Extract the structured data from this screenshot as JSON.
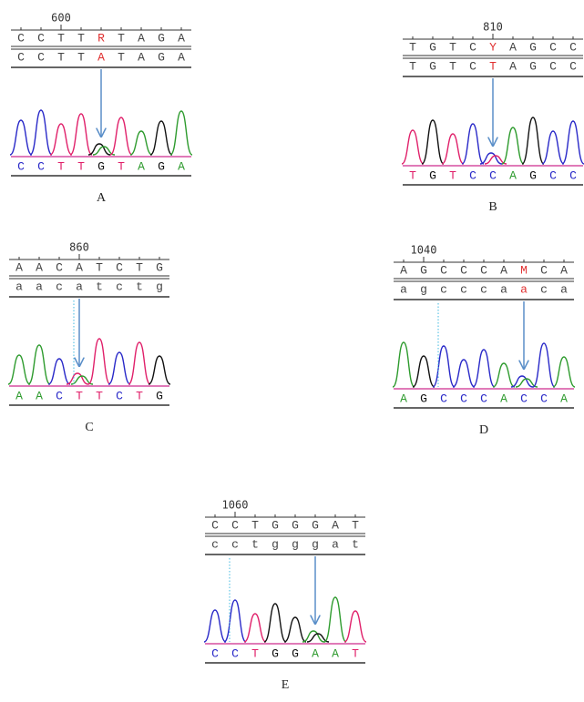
{
  "panels": [
    {
      "label": "A",
      "position": "600",
      "reference": [
        "C",
        "C",
        "T",
        "T",
        "R",
        "T",
        "A",
        "G",
        "A"
      ],
      "sample": [
        "C",
        "C",
        "T",
        "T",
        "A",
        "T",
        "A",
        "G",
        "A"
      ],
      "called": [
        "C",
        "C",
        "T",
        "T",
        "G",
        "T",
        "A",
        "G",
        "A"
      ],
      "mutation_index": 4
    },
    {
      "label": "B",
      "position": "810",
      "reference": [
        "T",
        "G",
        "T",
        "C",
        "Y",
        "A",
        "G",
        "C",
        "C"
      ],
      "sample": [
        "T",
        "G",
        "T",
        "C",
        "T",
        "A",
        "G",
        "C",
        "C"
      ],
      "called": [
        "T",
        "G",
        "T",
        "C",
        "C",
        "A",
        "G",
        "C",
        "C"
      ],
      "mutation_index": 4
    },
    {
      "label": "C",
      "position": "860",
      "reference": [
        "A",
        "A",
        "C",
        "A",
        "T",
        "C",
        "T",
        "G"
      ],
      "sample": [
        "a",
        "a",
        "c",
        "a",
        "t",
        "c",
        "t",
        "g"
      ],
      "called": [
        "A",
        "A",
        "C",
        "T",
        "T",
        "C",
        "T",
        "G"
      ],
      "mutation_index": 3
    },
    {
      "label": "D",
      "position": "1040",
      "reference": [
        "A",
        "G",
        "C",
        "C",
        "C",
        "A",
        "M",
        "C",
        "A"
      ],
      "sample": [
        "a",
        "g",
        "c",
        "c",
        "c",
        "a",
        "a",
        "c",
        "a"
      ],
      "called": [
        "A",
        "G",
        "C",
        "C",
        "C",
        "A",
        "C",
        "C",
        "A"
      ],
      "mutation_index": 6
    },
    {
      "label": "E",
      "position": "1060",
      "reference": [
        "C",
        "C",
        "T",
        "G",
        "G",
        "G",
        "A",
        "T"
      ],
      "sample": [
        "c",
        "c",
        "t",
        "g",
        "g",
        "g",
        "a",
        "t"
      ],
      "called": [
        "C",
        "C",
        "T",
        "G",
        "G",
        "A",
        "A",
        "T"
      ],
      "mutation_index": 5
    }
  ]
}
